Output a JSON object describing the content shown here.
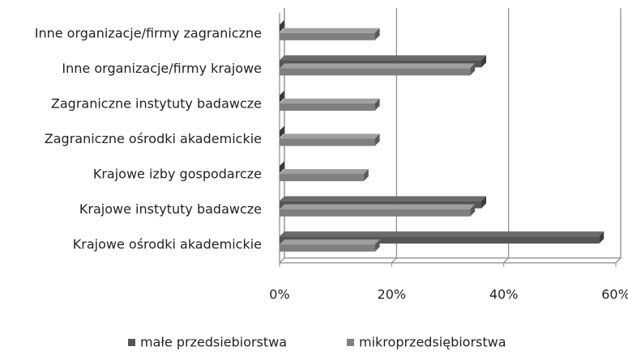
{
  "chart_data": {
    "type": "bar",
    "orientation": "horizontal",
    "categories": [
      "Inne organizacje/firmy zagraniczne",
      "Inne organizacje/firmy krajowe",
      "Zagraniczne instytuty badawcze",
      "Zagraniczne ośrodki akademickie",
      "Krajowe izby gospodarcze",
      "Krajowe instytuty badawcze",
      "Krajowe ośrodki akademickie"
    ],
    "series": [
      {
        "name": "małe przedsiebiorstwa",
        "color": "#555555",
        "values": [
          0,
          36,
          0,
          0,
          0,
          36,
          57
        ]
      },
      {
        "name": "mikroprzedsiębiorstwa",
        "color": "#7f7f7f",
        "values": [
          17,
          34,
          17,
          17,
          15,
          34,
          17
        ]
      }
    ],
    "xlim": [
      0,
      60
    ],
    "xticks": [
      {
        "value": 0,
        "label": "0%"
      },
      {
        "value": 20,
        "label": "20%"
      },
      {
        "value": 40,
        "label": "40%"
      },
      {
        "value": 60,
        "label": "60%"
      }
    ],
    "grid": true,
    "legend": "bottom"
  }
}
